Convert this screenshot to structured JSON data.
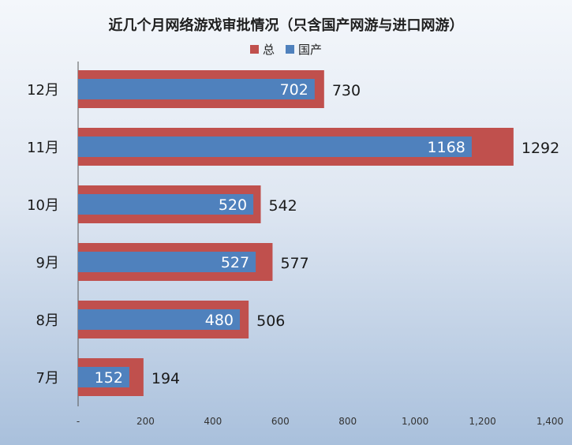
{
  "chart_data": {
    "type": "bar",
    "orientation": "horizontal",
    "title": "近几个月网络游戏审批情况（只含国产网游与进口网游）",
    "categories": [
      "12月",
      "11月",
      "10月",
      "9月",
      "8月",
      "7月"
    ],
    "series": [
      {
        "name": "总",
        "color": "#c0504d",
        "values": [
          730,
          1292,
          542,
          577,
          506,
          194
        ]
      },
      {
        "name": "国产",
        "color": "#4f81bd",
        "values": [
          702,
          1168,
          520,
          527,
          480,
          152
        ]
      }
    ],
    "xlim": [
      0,
      1400
    ],
    "x_ticks": [
      "-",
      "200",
      "400",
      "600",
      "800",
      "1,000",
      "1,200",
      "1,400"
    ],
    "legend": "top-center",
    "grid": false
  }
}
